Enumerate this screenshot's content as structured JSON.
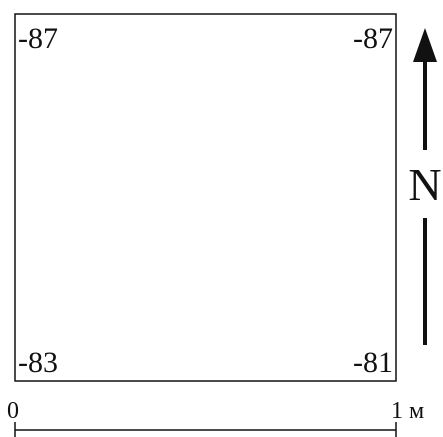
{
  "corners": {
    "top_left": "-87",
    "top_right": "-87",
    "bottom_left": "-83",
    "bottom_right": "-81"
  },
  "north": "N",
  "scale": {
    "start": "0",
    "end": "1 м"
  }
}
